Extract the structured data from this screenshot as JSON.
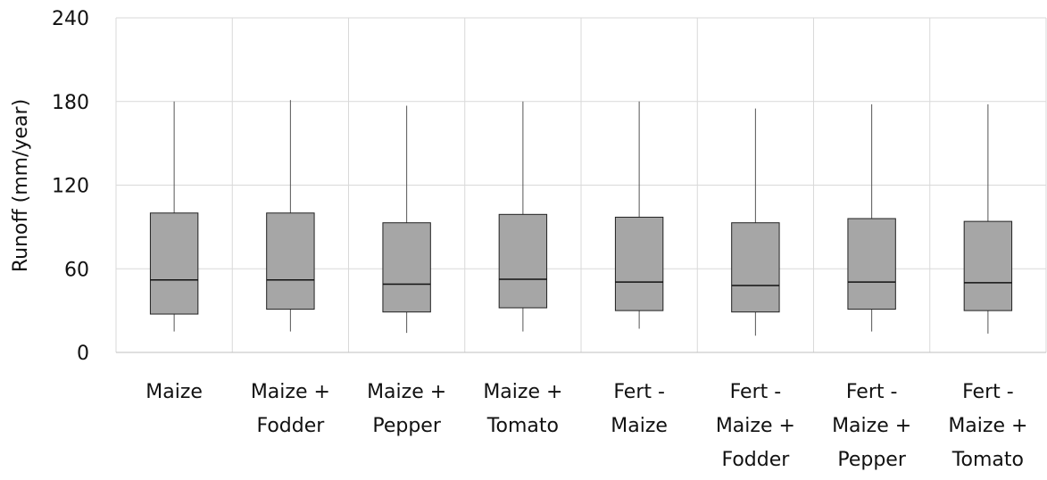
{
  "chart_data": {
    "type": "box",
    "y_label": "Runoff (mm/year)",
    "categories": [
      "Maize",
      "Maize +\nFodder",
      "Maize +\nPepper",
      "Maize +\nTomato",
      "Fert -\nMaize",
      "Fert -\nMaize +\nFodder",
      "Fert -\nMaize +\nPepper",
      "Fert -\nMaize +\nTomato"
    ],
    "min": [
      15,
      15,
      14,
      15,
      17,
      12,
      15,
      13.5
    ],
    "q1": [
      27.5,
      31,
      29,
      32,
      30,
      29,
      31,
      30
    ],
    "median": [
      52,
      52,
      49,
      52.5,
      50.5,
      48,
      50.5,
      50
    ],
    "q3": [
      100,
      100,
      93,
      99,
      97,
      93,
      96,
      94
    ],
    "max": [
      180,
      181,
      177,
      180,
      180,
      175,
      178,
      178
    ],
    "color": "#a6a6a6",
    "ylim": [
      0,
      240
    ],
    "yticks": [
      0,
      60,
      120,
      180,
      240
    ],
    "grid": true
  }
}
